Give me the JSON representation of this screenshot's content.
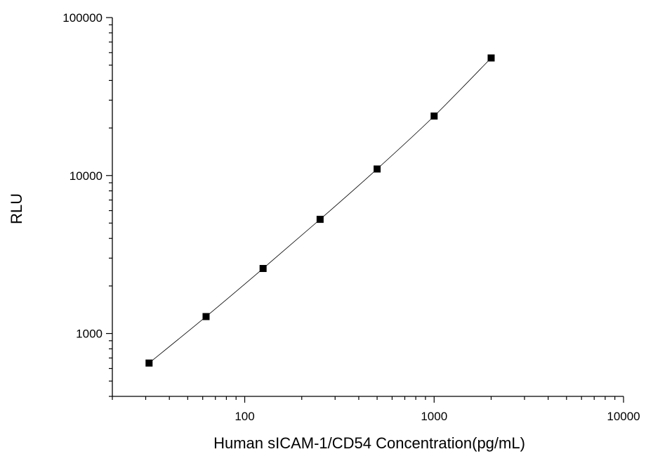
{
  "chart_data": {
    "type": "scatter",
    "xlabel": "Human sICAM-1/CD54 Concentration(pg/mL)",
    "ylabel": "RLU",
    "x_scale": "log",
    "y_scale": "log",
    "xlim": [
      20,
      10000
    ],
    "ylim": [
      400,
      100000
    ],
    "x_ticks": [
      100,
      1000,
      10000
    ],
    "y_ticks": [
      1000,
      10000,
      100000
    ],
    "x_tick_labels": [
      "100",
      "1000",
      "10000"
    ],
    "y_tick_labels": [
      "1000",
      "10000",
      "100000"
    ],
    "grid": false,
    "legend": "none",
    "marker_color": "#000000",
    "line_color": "#000000",
    "series": [
      {
        "x": [
          31.25,
          62.5,
          125,
          250,
          500,
          1000,
          2000
        ],
        "y": [
          650,
          1280,
          2580,
          5280,
          11000,
          23800,
          55500
        ]
      }
    ]
  }
}
